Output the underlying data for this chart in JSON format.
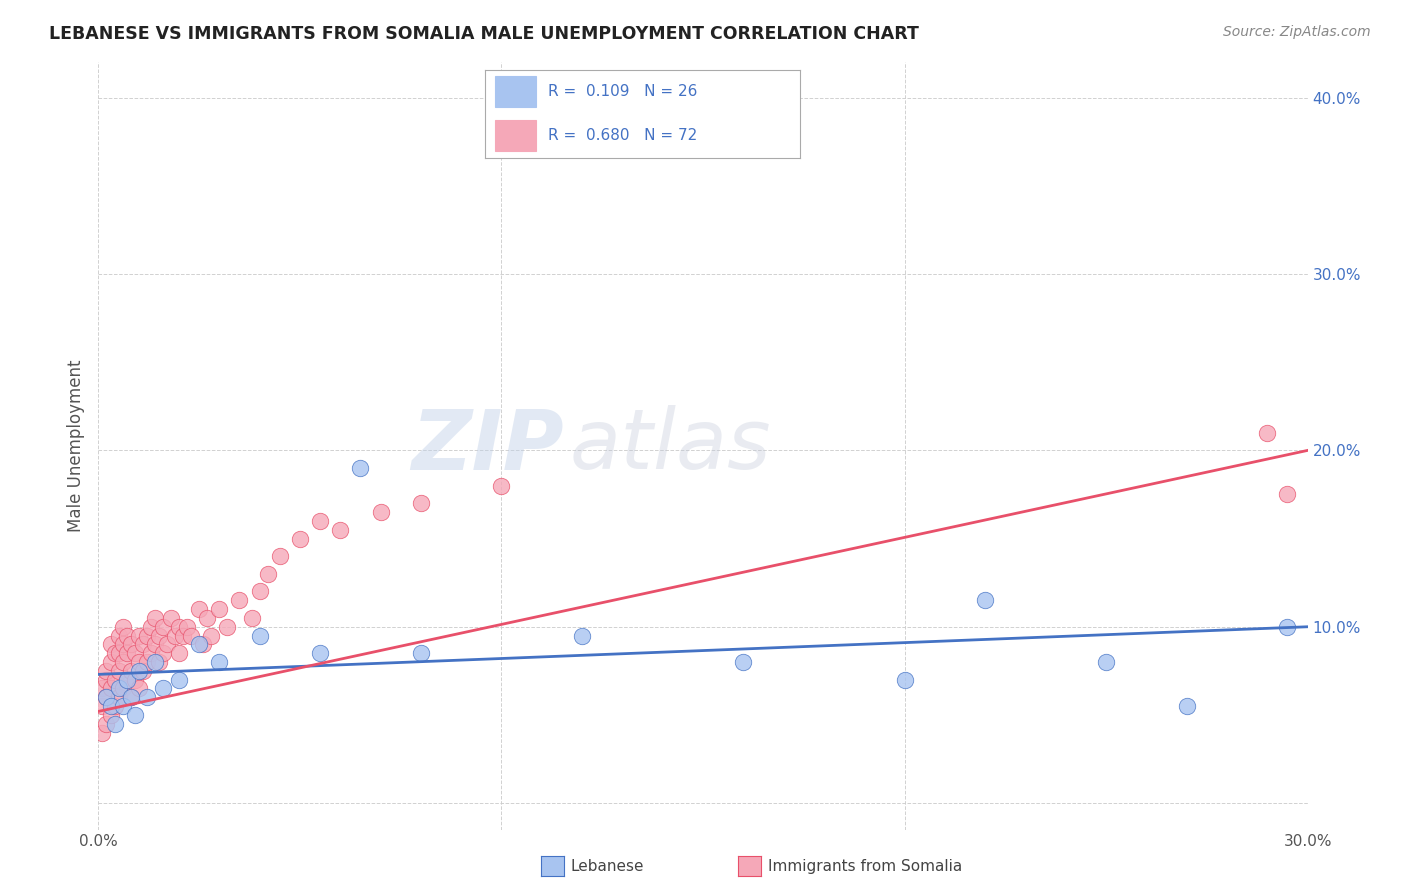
{
  "title": "LEBANESE VS IMMIGRANTS FROM SOMALIA MALE UNEMPLOYMENT CORRELATION CHART",
  "source": "Source: ZipAtlas.com",
  "ylabel": "Male Unemployment",
  "xlim": [
    0.0,
    0.3
  ],
  "ylim": [
    -0.015,
    0.42
  ],
  "yticks": [
    0.0,
    0.1,
    0.2,
    0.3,
    0.4
  ],
  "xticks": [
    0.0,
    0.1,
    0.2,
    0.3
  ],
  "xtick_labels": [
    "0.0%",
    "",
    "",
    "30.0%"
  ],
  "ytick_labels": [
    "",
    "10.0%",
    "20.0%",
    "30.0%",
    "40.0%"
  ],
  "blue_color": "#A8C4F0",
  "pink_color": "#F5A8B8",
  "line_blue": "#4472C4",
  "line_pink": "#E8506A",
  "watermark_zip": "ZIP",
  "watermark_atlas": "atlas",
  "lebanese_x": [
    0.002,
    0.003,
    0.004,
    0.005,
    0.006,
    0.007,
    0.008,
    0.009,
    0.01,
    0.012,
    0.014,
    0.016,
    0.02,
    0.025,
    0.03,
    0.04,
    0.055,
    0.065,
    0.08,
    0.12,
    0.16,
    0.2,
    0.22,
    0.25,
    0.27,
    0.295
  ],
  "lebanese_y": [
    0.06,
    0.055,
    0.045,
    0.065,
    0.055,
    0.07,
    0.06,
    0.05,
    0.075,
    0.06,
    0.08,
    0.065,
    0.07,
    0.09,
    0.08,
    0.095,
    0.085,
    0.19,
    0.085,
    0.095,
    0.08,
    0.07,
    0.115,
    0.08,
    0.055,
    0.1
  ],
  "somalia_x": [
    0.001,
    0.001,
    0.001,
    0.002,
    0.002,
    0.002,
    0.002,
    0.003,
    0.003,
    0.003,
    0.003,
    0.004,
    0.004,
    0.004,
    0.005,
    0.005,
    0.005,
    0.005,
    0.006,
    0.006,
    0.006,
    0.006,
    0.007,
    0.007,
    0.007,
    0.008,
    0.008,
    0.008,
    0.009,
    0.009,
    0.01,
    0.01,
    0.01,
    0.011,
    0.011,
    0.012,
    0.012,
    0.013,
    0.013,
    0.014,
    0.014,
    0.015,
    0.015,
    0.016,
    0.016,
    0.017,
    0.018,
    0.019,
    0.02,
    0.02,
    0.021,
    0.022,
    0.023,
    0.025,
    0.026,
    0.027,
    0.028,
    0.03,
    0.032,
    0.035,
    0.038,
    0.04,
    0.042,
    0.045,
    0.05,
    0.055,
    0.06,
    0.07,
    0.08,
    0.1,
    0.29,
    0.295
  ],
  "somalia_y": [
    0.04,
    0.055,
    0.065,
    0.045,
    0.06,
    0.07,
    0.075,
    0.05,
    0.065,
    0.08,
    0.09,
    0.055,
    0.07,
    0.085,
    0.06,
    0.075,
    0.085,
    0.095,
    0.065,
    0.08,
    0.09,
    0.1,
    0.07,
    0.085,
    0.095,
    0.06,
    0.075,
    0.09,
    0.07,
    0.085,
    0.065,
    0.08,
    0.095,
    0.075,
    0.09,
    0.08,
    0.095,
    0.085,
    0.1,
    0.09,
    0.105,
    0.08,
    0.095,
    0.085,
    0.1,
    0.09,
    0.105,
    0.095,
    0.085,
    0.1,
    0.095,
    0.1,
    0.095,
    0.11,
    0.09,
    0.105,
    0.095,
    0.11,
    0.1,
    0.115,
    0.105,
    0.12,
    0.13,
    0.14,
    0.15,
    0.16,
    0.155,
    0.165,
    0.17,
    0.18,
    0.21,
    0.175
  ],
  "blue_trendline_x": [
    0.0,
    0.3
  ],
  "blue_trendline_y": [
    0.073,
    0.1
  ],
  "pink_trendline_x": [
    0.0,
    0.3
  ],
  "pink_trendline_y": [
    0.052,
    0.2
  ]
}
